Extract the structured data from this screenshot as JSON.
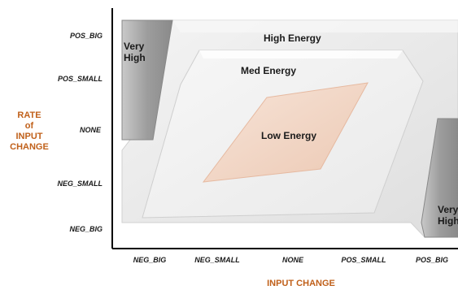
{
  "y_axis": {
    "title_lines": [
      "RATE",
      "of",
      "INPUT",
      "CHANGE"
    ],
    "ticks": [
      "POS_BIG",
      "POS_SMALL",
      "NONE",
      "NEG_SMALL",
      "NEG_BIG"
    ]
  },
  "x_axis": {
    "title": "INPUT CHANGE",
    "ticks": [
      "NEG_BIG",
      "NEG_SMALL",
      "NONE",
      "POS_SMALL",
      "POS_BIG"
    ]
  },
  "regions": {
    "high_energy": "High Energy",
    "med_energy": "Med Energy",
    "low_energy": "Low Energy",
    "very_high_left": [
      "Very",
      "High"
    ],
    "very_high_right": [
      "Very",
      "High"
    ]
  },
  "colors": {
    "axis_title": "#c0601a",
    "low_energy_fill": "#f1d6c6",
    "very_high_fill": "#9a9a9a",
    "outer_fill": "#ececec",
    "med_fill": "#f2f2f2"
  }
}
